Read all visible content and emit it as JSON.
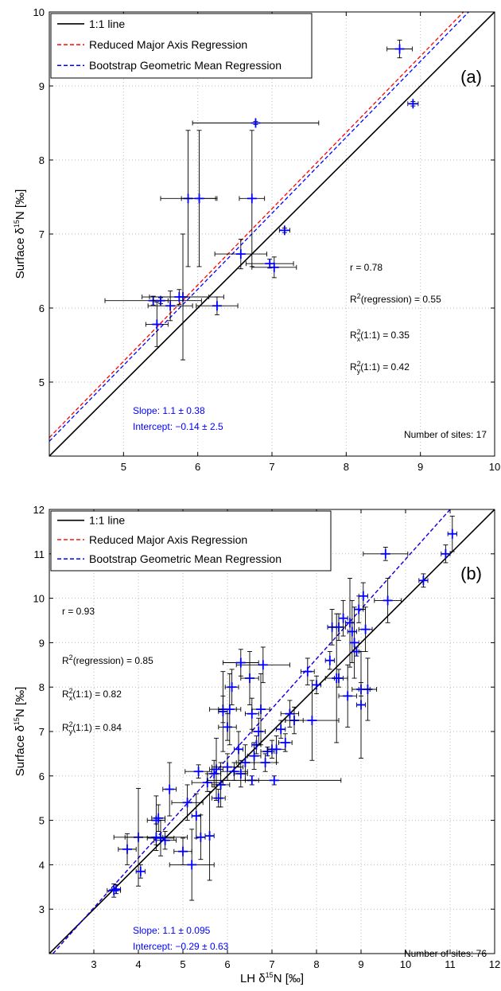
{
  "chart_data": [
    {
      "type": "scatter",
      "panel_label": "(a)",
      "xlim": [
        4,
        10
      ],
      "ylim": [
        4,
        10
      ],
      "xticks": [
        5,
        6,
        7,
        8,
        9,
        10
      ],
      "yticks": [
        5,
        6,
        7,
        8,
        9,
        10
      ],
      "xlabel": "",
      "ylabel": "Surface δ¹⁵N [‰]",
      "grid": true,
      "legend_position": "top-left",
      "legend": [
        {
          "label": "1:1 line",
          "color": "#000000",
          "style": "solid"
        },
        {
          "label": "Reduced Major Axis Regression",
          "color": "#ff0000",
          "style": "dashed"
        },
        {
          "label": "Bootstrap Geometric Mean Regression",
          "color": "#0000ff",
          "style": "dashed"
        }
      ],
      "stats": [
        "r = 0.78",
        "R²(regression) = 0.55",
        "R²ₓ(1:1) = 0.35",
        "R²ᵧ(1:1) = 0.42"
      ],
      "slope_text": "Slope: 1.1 ± 0.38",
      "intercept_text": "Intercept: −0.14 ± 2.5",
      "sites_text": "Number of sites: 17",
      "rma_line": [
        [
          4,
          4.25
        ],
        [
          9.58,
          10
        ]
      ],
      "bootstrap_line": [
        [
          4,
          4.2
        ],
        [
          9.65,
          10
        ]
      ],
      "points": [
        {
          "x": 8.72,
          "y": 9.5,
          "xerr": 0.17,
          "yerr": 0.12
        },
        {
          "x": 8.9,
          "y": 8.76,
          "xerr": 0.07,
          "yerr": 0.03
        },
        {
          "x": 6.78,
          "y": 8.5,
          "xerr": 0.85,
          "yerr": 0.02
        },
        {
          "x": 5.87,
          "y": 7.48,
          "xerr": 0.37,
          "yerr": 0.92
        },
        {
          "x": 6.02,
          "y": 7.48,
          "xerr": 0.24,
          "yerr": 0.92
        },
        {
          "x": 6.73,
          "y": 7.48,
          "xerr": 0.17,
          "yerr": 0.92
        },
        {
          "x": 7.17,
          "y": 7.05,
          "xerr": 0.07,
          "yerr": 0.03
        },
        {
          "x": 6.58,
          "y": 6.73,
          "xerr": 0.35,
          "yerr": 0.2
        },
        {
          "x": 6.97,
          "y": 6.6,
          "xerr": 0.32,
          "yerr": 0.06
        },
        {
          "x": 7.03,
          "y": 6.55,
          "xerr": 0.3,
          "yerr": 0.14
        },
        {
          "x": 5.8,
          "y": 6.15,
          "xerr": 0.55,
          "yerr": 0.85
        },
        {
          "x": 6.26,
          "y": 6.03,
          "xerr": 0.28,
          "yerr": 0.12
        },
        {
          "x": 5.63,
          "y": 6.03,
          "xerr": 0.3,
          "yerr": 0.2
        },
        {
          "x": 5.4,
          "y": 6.1,
          "xerr": 0.65,
          "yerr": 0.06
        },
        {
          "x": 5.45,
          "y": 5.78,
          "xerr": 0.15,
          "yerr": 0.3
        },
        {
          "x": 5.75,
          "y": 6.15,
          "xerr": 0.4,
          "yerr": 0.1
        },
        {
          "x": 5.5,
          "y": 6.1,
          "xerr": 0.1,
          "yerr": 0.04
        }
      ]
    },
    {
      "type": "scatter",
      "panel_label": "(b)",
      "xlim": [
        2,
        12
      ],
      "ylim": [
        2,
        12
      ],
      "xticks": [
        3,
        4,
        5,
        6,
        7,
        8,
        9,
        10,
        11,
        12
      ],
      "yticks": [
        3,
        4,
        5,
        6,
        7,
        8,
        9,
        10,
        11,
        12
      ],
      "xlabel": "LH δ¹⁵N [‰]",
      "ylabel": "Surface δ¹⁵N [‰]",
      "grid": true,
      "legend_position": "top-left",
      "legend": [
        {
          "label": "1:1 line",
          "color": "#000000",
          "style": "solid"
        },
        {
          "label": "Reduced Major Axis Regression",
          "color": "#ff0000",
          "style": "dashed"
        },
        {
          "label": "Bootstrap Geometric Mean Regression",
          "color": "#0000ff",
          "style": "dashed"
        }
      ],
      "stats": [
        "r = 0.93",
        "R²(regression) = 0.85",
        "R²ₓ(1:1) = 0.82",
        "R²ᵧ(1:1) = 0.84"
      ],
      "slope_text": "Slope: 1.1 ± 0.095",
      "intercept_text": "Intercept: −0.29 ± 0.63",
      "sites_text": "Number of sites: 76",
      "rma_line": [
        [
          2.08,
          2
        ],
        [
          11.0,
          12
        ]
      ],
      "bootstrap_line": [
        [
          2.08,
          2
        ],
        [
          11.0,
          12
        ]
      ],
      "points": [
        {
          "x": 3.45,
          "y": 3.42,
          "xerr": 0.15,
          "yerr": 0.15
        },
        {
          "x": 3.5,
          "y": 3.45,
          "xerr": 0.1,
          "yerr": 0.1
        },
        {
          "x": 3.75,
          "y": 4.35,
          "xerr": 0.2,
          "yerr": 0.35
        },
        {
          "x": 4.0,
          "y": 4.62,
          "xerr": 0.55,
          "yerr": 1.1
        },
        {
          "x": 4.05,
          "y": 3.85,
          "xerr": 0.1,
          "yerr": 0.15
        },
        {
          "x": 4.4,
          "y": 5.0,
          "xerr": 0.2,
          "yerr": 0.55
        },
        {
          "x": 4.5,
          "y": 4.6,
          "xerr": 0.3,
          "yerr": 0.4
        },
        {
          "x": 4.6,
          "y": 4.55,
          "xerr": 0.25,
          "yerr": 0.2
        },
        {
          "x": 4.4,
          "y": 4.62,
          "xerr": 0.7,
          "yerr": 0.3
        },
        {
          "x": 4.7,
          "y": 5.7,
          "xerr": 0.15,
          "yerr": 0.6
        },
        {
          "x": 5.0,
          "y": 4.3,
          "xerr": 0.2,
          "yerr": 0.3
        },
        {
          "x": 5.1,
          "y": 5.4,
          "xerr": 0.35,
          "yerr": 0.4
        },
        {
          "x": 5.2,
          "y": 4.0,
          "xerr": 0.5,
          "yerr": 0.8
        },
        {
          "x": 5.3,
          "y": 5.1,
          "xerr": 0.1,
          "yerr": 0.5
        },
        {
          "x": 5.35,
          "y": 6.1,
          "xerr": 0.3,
          "yerr": 0.15
        },
        {
          "x": 5.4,
          "y": 4.62,
          "xerr": 0.1,
          "yerr": 0.5
        },
        {
          "x": 5.55,
          "y": 5.85,
          "xerr": 0.35,
          "yerr": 0.2
        },
        {
          "x": 5.6,
          "y": 4.65,
          "xerr": 0.1,
          "yerr": 1.0
        },
        {
          "x": 5.7,
          "y": 6.05,
          "xerr": 0.15,
          "yerr": 0.3
        },
        {
          "x": 5.8,
          "y": 5.5,
          "xerr": 0.15,
          "yerr": 0.2
        },
        {
          "x": 5.85,
          "y": 5.8,
          "xerr": 0.2,
          "yerr": 0.5
        },
        {
          "x": 5.9,
          "y": 7.5,
          "xerr": 0.3,
          "yerr": 0.3
        },
        {
          "x": 5.9,
          "y": 7.45,
          "xerr": 0.1,
          "yerr": 0.9
        },
        {
          "x": 6.0,
          "y": 7.1,
          "xerr": 0.2,
          "yerr": 0.3
        },
        {
          "x": 6.05,
          "y": 7.5,
          "xerr": 0.25,
          "yerr": 0.8
        },
        {
          "x": 6.1,
          "y": 8.0,
          "xerr": 0.15,
          "yerr": 0.4
        },
        {
          "x": 6.15,
          "y": 6.1,
          "xerr": 0.3,
          "yerr": 0.2
        },
        {
          "x": 6.25,
          "y": 6.6,
          "xerr": 0.1,
          "yerr": 0.4
        },
        {
          "x": 6.3,
          "y": 6.05,
          "xerr": 0.15,
          "yerr": 0.3
        },
        {
          "x": 6.5,
          "y": 8.2,
          "xerr": 0.2,
          "yerr": 0.6
        },
        {
          "x": 6.55,
          "y": 7.4,
          "xerr": 0.15,
          "yerr": 0.35
        },
        {
          "x": 6.6,
          "y": 6.45,
          "xerr": 0.15,
          "yerr": 0.3
        },
        {
          "x": 6.65,
          "y": 6.7,
          "xerr": 0.1,
          "yerr": 0.2
        },
        {
          "x": 6.7,
          "y": 7.0,
          "xerr": 0.15,
          "yerr": 0.3
        },
        {
          "x": 6.75,
          "y": 7.5,
          "xerr": 0.2,
          "yerr": 0.8
        },
        {
          "x": 6.8,
          "y": 8.5,
          "xerr": 0.6,
          "yerr": 0.4
        },
        {
          "x": 6.55,
          "y": 5.9,
          "xerr": 0.15,
          "yerr": 0.1
        },
        {
          "x": 6.85,
          "y": 6.3,
          "xerr": 0.25,
          "yerr": 0.2
        },
        {
          "x": 6.9,
          "y": 6.55,
          "xerr": 0.15,
          "yerr": 0.1
        },
        {
          "x": 7.0,
          "y": 6.6,
          "xerr": 0.1,
          "yerr": 0.2
        },
        {
          "x": 7.05,
          "y": 5.9,
          "xerr": 1.5,
          "yerr": 0.1
        },
        {
          "x": 7.1,
          "y": 6.6,
          "xerr": 0.2,
          "yerr": 0.3
        },
        {
          "x": 7.2,
          "y": 7.05,
          "xerr": 0.1,
          "yerr": 0.2
        },
        {
          "x": 7.3,
          "y": 6.75,
          "xerr": 0.15,
          "yerr": 0.2
        },
        {
          "x": 7.4,
          "y": 7.4,
          "xerr": 0.2,
          "yerr": 0.3
        },
        {
          "x": 7.5,
          "y": 7.25,
          "xerr": 0.2,
          "yerr": 0.3
        },
        {
          "x": 7.8,
          "y": 8.35,
          "xerr": 0.15,
          "yerr": 0.3
        },
        {
          "x": 7.9,
          "y": 7.25,
          "xerr": 0.6,
          "yerr": 0.9
        },
        {
          "x": 8.0,
          "y": 8.05,
          "xerr": 0.1,
          "yerr": 0.2
        },
        {
          "x": 8.3,
          "y": 8.6,
          "xerr": 0.1,
          "yerr": 0.2
        },
        {
          "x": 8.35,
          "y": 9.35,
          "xerr": 0.1,
          "yerr": 0.4
        },
        {
          "x": 8.45,
          "y": 8.2,
          "xerr": 0.25,
          "yerr": 1.45
        },
        {
          "x": 8.5,
          "y": 9.35,
          "xerr": 0.15,
          "yerr": 0.3
        },
        {
          "x": 8.6,
          "y": 9.55,
          "xerr": 0.1,
          "yerr": 0.4
        },
        {
          "x": 8.7,
          "y": 7.8,
          "xerr": 0.2,
          "yerr": 0.7
        },
        {
          "x": 8.75,
          "y": 9.45,
          "xerr": 0.1,
          "yerr": 1.0
        },
        {
          "x": 8.8,
          "y": 9.25,
          "xerr": 0.1,
          "yerr": 0.7
        },
        {
          "x": 8.85,
          "y": 9.0,
          "xerr": 0.1,
          "yerr": 0.8
        },
        {
          "x": 8.9,
          "y": 8.8,
          "xerr": 0.05,
          "yerr": 0.1
        },
        {
          "x": 8.95,
          "y": 9.75,
          "xerr": 0.1,
          "yerr": 0.3
        },
        {
          "x": 9.0,
          "y": 7.6,
          "xerr": 0.1,
          "yerr": 1.2
        },
        {
          "x": 9.05,
          "y": 10.05,
          "xerr": 0.1,
          "yerr": 0.3
        },
        {
          "x": 9.15,
          "y": 7.95,
          "xerr": 0.2,
          "yerr": 0.7
        },
        {
          "x": 9.1,
          "y": 9.3,
          "xerr": 0.15,
          "yerr": 0.5
        },
        {
          "x": 9.55,
          "y": 11.0,
          "xerr": 0.5,
          "yerr": 0.15
        },
        {
          "x": 9.6,
          "y": 9.95,
          "xerr": 0.3,
          "yerr": 0.5
        },
        {
          "x": 10.4,
          "y": 10.4,
          "xerr": 0.1,
          "yerr": 0.15
        },
        {
          "x": 10.9,
          "y": 11.0,
          "xerr": 0.1,
          "yerr": 0.2
        },
        {
          "x": 11.05,
          "y": 11.45,
          "xerr": 0.1,
          "yerr": 0.4
        },
        {
          "x": 9.0,
          "y": 7.95,
          "xerr": 0.2,
          "yerr": 0.15
        },
        {
          "x": 8.5,
          "y": 8.2,
          "xerr": 0.1,
          "yerr": 0.2
        },
        {
          "x": 6.3,
          "y": 8.55,
          "xerr": 0.4,
          "yerr": 0.3
        },
        {
          "x": 4.45,
          "y": 5.05,
          "xerr": 0.15,
          "yerr": 0.3
        },
        {
          "x": 5.75,
          "y": 6.15,
          "xerr": 0.15,
          "yerr": 0.7
        },
        {
          "x": 6.0,
          "y": 6.2,
          "xerr": 0.35,
          "yerr": 0.3
        },
        {
          "x": 6.4,
          "y": 6.3,
          "xerr": 0.2,
          "yerr": 0.4
        }
      ]
    }
  ]
}
